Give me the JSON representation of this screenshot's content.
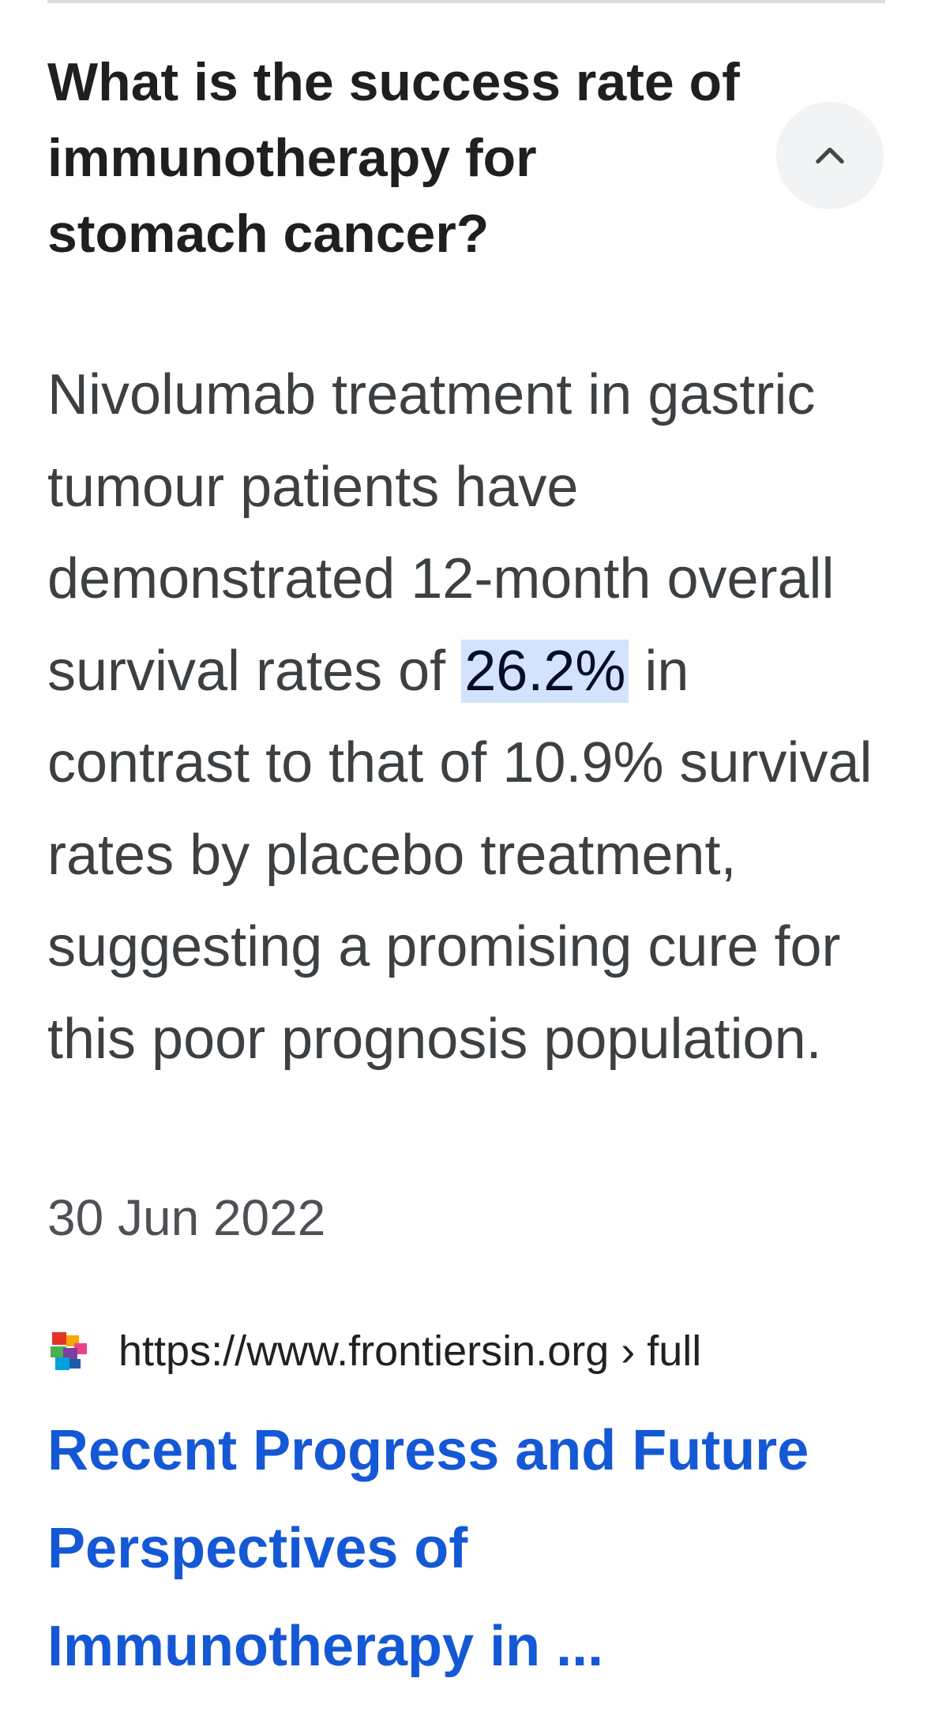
{
  "faq": {
    "question": "What is the success rate of immunotherapy for stomach cancer?",
    "collapse_icon": "chevron-up-icon",
    "answer_before_highlight": "Nivolumab treatment in gastric tumour patients have demonstrated 12-month overall survival rates of ",
    "answer_highlight": "26.2%",
    "answer_after_highlight": " in contrast to that of 10.9% survival rates by placebo treatment, suggesting a promising cure for this poor prognosis population.",
    "date": "30 Jun 2022"
  },
  "source": {
    "favicon_icon": "frontiers-logo-icon",
    "url": "https://www.frontiersin.org › full",
    "title": "Recent Progress and Future Perspectives of Immunotherapy in ..."
  },
  "colors": {
    "highlight_bg": "#d3e3fd",
    "link": "#1558d6",
    "text": "#3c4043",
    "button_bg": "#f1f3f4"
  }
}
